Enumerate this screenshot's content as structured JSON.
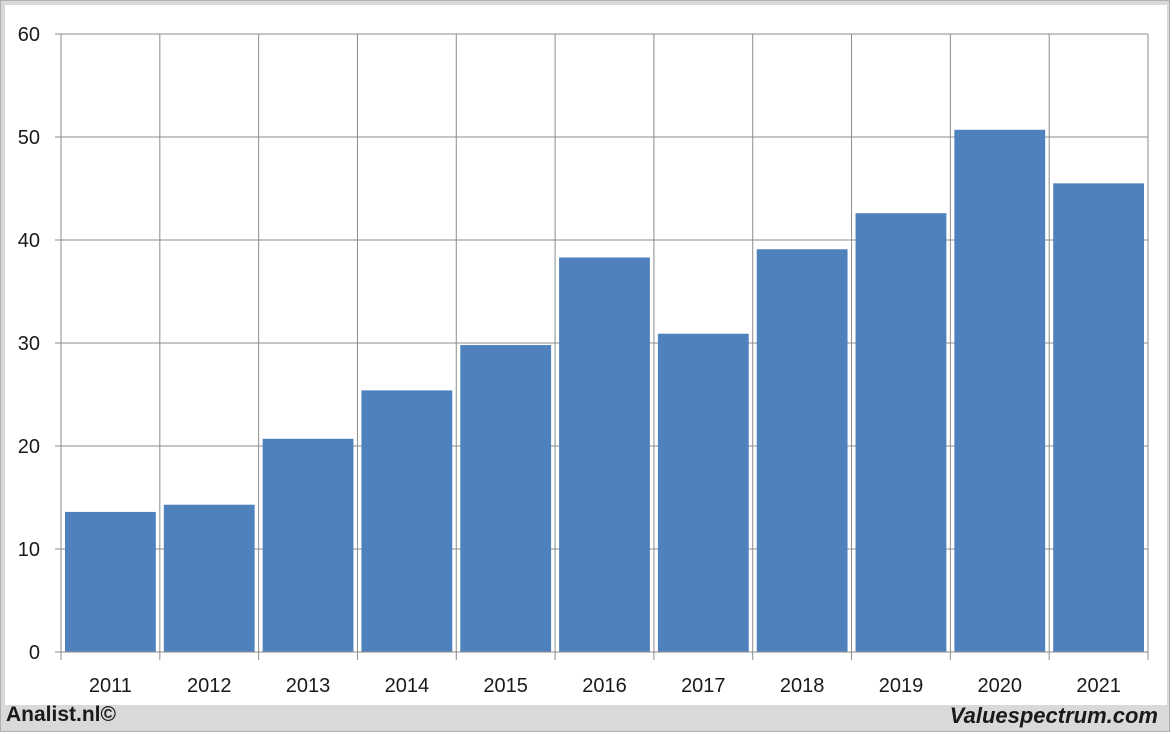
{
  "chart_data": {
    "type": "bar",
    "categories": [
      "2011",
      "2012",
      "2013",
      "2014",
      "2015",
      "2016",
      "2017",
      "2018",
      "2019",
      "2020",
      "2021"
    ],
    "values": [
      13.6,
      14.3,
      20.7,
      25.4,
      29.8,
      38.3,
      30.9,
      39.1,
      42.6,
      50.7,
      45.5
    ],
    "title": "",
    "xlabel": "",
    "ylabel": "",
    "ylim": [
      0,
      60
    ],
    "yticks": [
      "0",
      "10",
      "20",
      "30",
      "40",
      "50",
      "60"
    ],
    "grid": true,
    "bar_color": "#4f81bd"
  },
  "footer": {
    "left": "Analist.nl©",
    "right": "Valuespectrum.com"
  }
}
